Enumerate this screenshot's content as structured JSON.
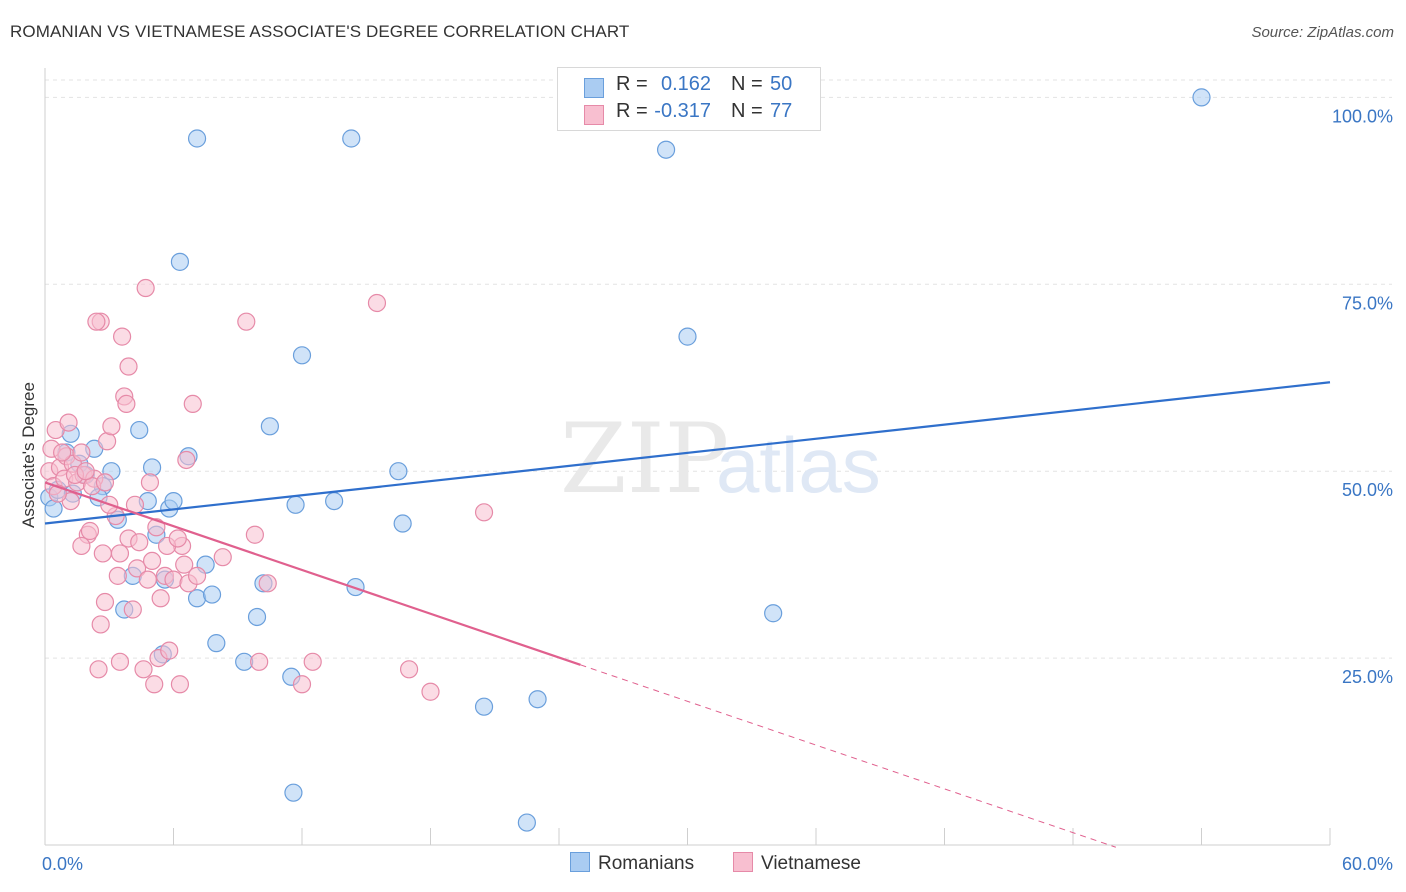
{
  "title": "ROMANIAN VS VIETNAMESE ASSOCIATE'S DEGREE CORRELATION CHART",
  "source": "Source: ZipAtlas.com",
  "watermark": {
    "zip": "ZIP",
    "atlas": "atlas"
  },
  "colors": {
    "blue_fill": "#aaccf2",
    "blue_stroke": "#6a9fdc",
    "blue_line": "#2f6fcc",
    "pink_fill": "#f8bfd0",
    "pink_stroke": "#e68aa8",
    "pink_line": "#e0608e",
    "axis_text": "#3a76c4",
    "grid": "#e3e3e3"
  },
  "legend": {
    "rows": [
      {
        "r_label": "R =",
        "r_value": "0.162",
        "n_label": "N =",
        "n_value": "50"
      },
      {
        "r_label": "R =",
        "r_value": "-0.317",
        "n_label": "N =",
        "n_value": "77"
      }
    ]
  },
  "chart_data": {
    "type": "scatter",
    "title": "ROMANIAN VS VIETNAMESE ASSOCIATE'S DEGREE CORRELATION CHART",
    "xlabel": "",
    "ylabel": "Associate's Degree",
    "xlim": [
      0,
      60
    ],
    "ylim": [
      0,
      105
    ],
    "x_tick_labels": [
      "0.0%",
      "60.0%"
    ],
    "y_tick_labels": [
      "100.0%",
      "75.0%",
      "50.0%",
      "25.0%"
    ],
    "y_ticks": [
      100,
      75,
      50,
      25
    ],
    "series": [
      {
        "name": "Romanians",
        "trend": {
          "x0": 0,
          "y0": 43.0,
          "x1": 60,
          "y1": 61.9,
          "dash_to": 60
        },
        "points": [
          [
            0.2,
            46.5
          ],
          [
            0.6,
            47.5
          ],
          [
            1.0,
            52.5
          ],
          [
            1.2,
            55.0
          ],
          [
            1.3,
            47.0
          ],
          [
            1.6,
            51.0
          ],
          [
            1.9,
            49.5
          ],
          [
            2.3,
            53.0
          ],
          [
            2.7,
            48.0
          ],
          [
            2.5,
            46.5
          ],
          [
            3.1,
            50.0
          ],
          [
            3.4,
            43.5
          ],
          [
            3.7,
            31.5
          ],
          [
            4.1,
            36.0
          ],
          [
            4.4,
            55.5
          ],
          [
            4.8,
            46.0
          ],
          [
            5.0,
            50.5
          ],
          [
            5.2,
            41.5
          ],
          [
            5.6,
            35.5
          ],
          [
            5.8,
            45.0
          ],
          [
            6.0,
            46.0
          ],
          [
            6.7,
            52.0
          ],
          [
            7.1,
            33.0
          ],
          [
            7.5,
            37.5
          ],
          [
            7.8,
            33.5
          ],
          [
            8.0,
            27.0
          ],
          [
            9.3,
            24.5
          ],
          [
            9.9,
            30.5
          ],
          [
            10.2,
            35.0
          ],
          [
            10.5,
            56.0
          ],
          [
            11.5,
            22.5
          ],
          [
            11.7,
            45.5
          ],
          [
            12.0,
            65.5
          ],
          [
            13.5,
            46.0
          ],
          [
            14.3,
            94.5
          ],
          [
            14.5,
            34.5
          ],
          [
            16.5,
            50.0
          ],
          [
            16.7,
            43.0
          ],
          [
            20.5,
            18.5
          ],
          [
            23.0,
            19.5
          ],
          [
            7.1,
            94.5
          ],
          [
            6.3,
            78.0
          ],
          [
            11.6,
            7.0
          ],
          [
            22.5,
            3.0
          ],
          [
            30.0,
            68.0
          ],
          [
            34.0,
            31.0
          ],
          [
            54.0,
            100.0
          ],
          [
            29.0,
            93.0
          ],
          [
            5.5,
            25.5
          ],
          [
            0.4,
            45.0
          ]
        ]
      },
      {
        "name": "Vietnamese",
        "trend": {
          "x0": 0,
          "y0": 48.5,
          "x1": 25,
          "y1": 24.1,
          "dash_to": 50
        },
        "points": [
          [
            0.2,
            50.0
          ],
          [
            0.3,
            53.0
          ],
          [
            0.4,
            48.0
          ],
          [
            0.5,
            55.5
          ],
          [
            0.7,
            50.5
          ],
          [
            0.9,
            49.0
          ],
          [
            1.0,
            52.0
          ],
          [
            1.1,
            56.5
          ],
          [
            1.2,
            46.0
          ],
          [
            1.3,
            51.0
          ],
          [
            1.5,
            48.5
          ],
          [
            1.7,
            52.5
          ],
          [
            1.8,
            49.5
          ],
          [
            2.0,
            41.5
          ],
          [
            2.1,
            42.0
          ],
          [
            2.3,
            49.0
          ],
          [
            2.5,
            23.5
          ],
          [
            2.6,
            29.5
          ],
          [
            2.8,
            32.5
          ],
          [
            2.9,
            54.0
          ],
          [
            3.1,
            56.0
          ],
          [
            3.3,
            44.0
          ],
          [
            3.4,
            36.0
          ],
          [
            3.5,
            39.0
          ],
          [
            3.7,
            60.0
          ],
          [
            3.8,
            59.0
          ],
          [
            3.9,
            41.0
          ],
          [
            4.1,
            31.5
          ],
          [
            4.2,
            45.5
          ],
          [
            4.3,
            37.0
          ],
          [
            4.4,
            40.5
          ],
          [
            4.6,
            23.5
          ],
          [
            4.8,
            35.5
          ],
          [
            5.0,
            38.0
          ],
          [
            5.1,
            21.5
          ],
          [
            5.3,
            25.0
          ],
          [
            5.4,
            33.0
          ],
          [
            5.6,
            36.0
          ],
          [
            5.8,
            26.0
          ],
          [
            6.0,
            35.5
          ],
          [
            6.3,
            21.5
          ],
          [
            6.4,
            40.0
          ],
          [
            6.5,
            37.5
          ],
          [
            6.7,
            35.0
          ],
          [
            6.9,
            59.0
          ],
          [
            7.1,
            36.0
          ],
          [
            3.6,
            68.0
          ],
          [
            2.6,
            70.0
          ],
          [
            3.5,
            24.5
          ],
          [
            4.7,
            74.5
          ],
          [
            9.4,
            70.0
          ],
          [
            9.8,
            41.5
          ],
          [
            10.0,
            24.5
          ],
          [
            10.4,
            35.0
          ],
          [
            12.0,
            21.5
          ],
          [
            12.5,
            24.5
          ],
          [
            15.5,
            72.5
          ],
          [
            17.0,
            23.5
          ],
          [
            18.0,
            20.5
          ],
          [
            20.5,
            44.5
          ],
          [
            1.7,
            40.0
          ],
          [
            2.2,
            48.0
          ],
          [
            2.8,
            48.5
          ],
          [
            3.0,
            45.5
          ],
          [
            0.8,
            52.5
          ],
          [
            1.4,
            49.5
          ],
          [
            2.7,
            39.0
          ],
          [
            4.9,
            48.5
          ],
          [
            5.2,
            42.5
          ],
          [
            5.7,
            40.0
          ],
          [
            6.2,
            41.0
          ],
          [
            8.3,
            38.5
          ],
          [
            6.6,
            51.5
          ],
          [
            3.9,
            64.0
          ],
          [
            2.4,
            70.0
          ],
          [
            1.9,
            50.0
          ],
          [
            0.6,
            47.0
          ]
        ]
      }
    ]
  },
  "bottom_legend": {
    "romanians": "Romanians",
    "vietnamese": "Vietnamese"
  }
}
